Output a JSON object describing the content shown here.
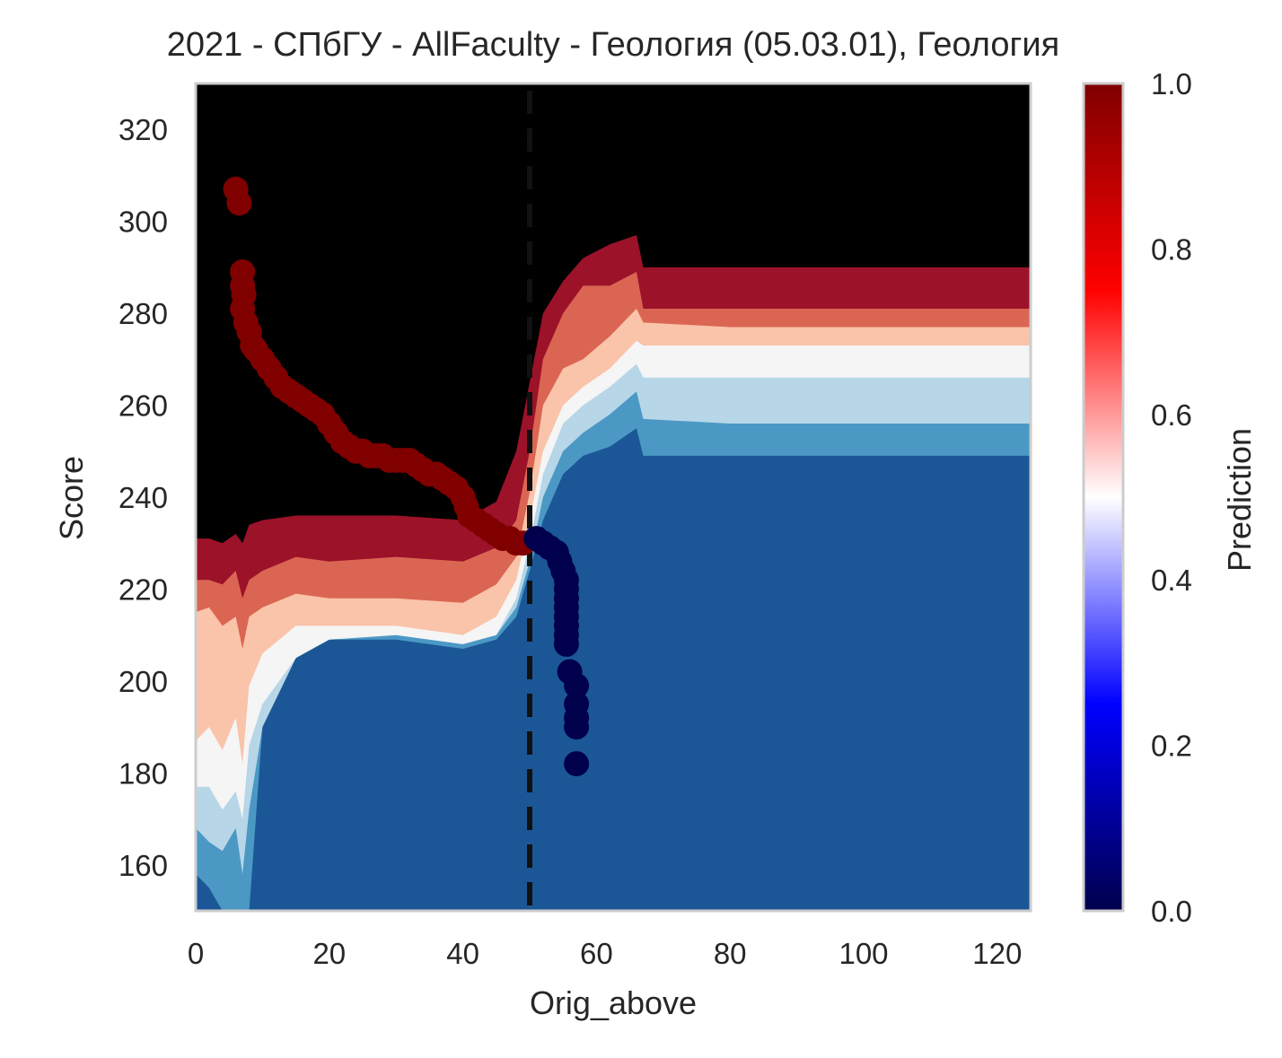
{
  "chart_data": {
    "type": "contour",
    "title": "2021 - СПбГУ - AllFaculty - Геология (05.03.01), Геология",
    "xlabel": "Orig_above",
    "ylabel": "Score",
    "xlim": [
      0,
      125
    ],
    "ylim": [
      150,
      330
    ],
    "xticks": [
      0,
      20,
      40,
      60,
      80,
      100,
      120
    ],
    "yticks": [
      160,
      180,
      200,
      220,
      240,
      260,
      280,
      300,
      320
    ],
    "grid": false,
    "vline": {
      "x": 50,
      "style": "dashed",
      "color": "#111111"
    },
    "colorbar": {
      "label": "Prediction",
      "range": [
        0,
        1
      ],
      "ticks": [
        "0.0",
        "0.2",
        "0.4",
        "0.6",
        "0.8",
        "1.0"
      ],
      "colormap": [
        "#00004c",
        "#0000ff",
        "#ffffff",
        "#ff0000",
        "#800000"
      ]
    },
    "contour_levels": [
      0.0,
      0.125,
      0.25,
      0.375,
      0.5,
      0.625,
      0.75,
      0.875,
      1.0
    ],
    "contour_colors": [
      "#053061",
      "#1b5796",
      "#4b98c5",
      "#b7d6e8",
      "#f5f5f5",
      "#f9c4a9",
      "#db6553",
      "#9c1229"
    ],
    "decision_boundaries": {
      "x": [
        0,
        2,
        4,
        6,
        7,
        8,
        10,
        15,
        20,
        30,
        40,
        45,
        48,
        50,
        52,
        55,
        58,
        62,
        66,
        67,
        80,
        100,
        125
      ],
      "b875": [
        231,
        231,
        230,
        232,
        230,
        234,
        235,
        236,
        236,
        236,
        235,
        239,
        250,
        265,
        280,
        287,
        292,
        295,
        297,
        290,
        290,
        290,
        290
      ],
      "b750": [
        222,
        222,
        221,
        224,
        218,
        222,
        224,
        227,
        226,
        227,
        226,
        229,
        235,
        250,
        270,
        280,
        286,
        286,
        289,
        281,
        281,
        281,
        281
      ],
      "b625": [
        215,
        216,
        212,
        214,
        207,
        214,
        216,
        219,
        218,
        218,
        217,
        221,
        227,
        241,
        260,
        268,
        270,
        275,
        281,
        278,
        277,
        277,
        277
      ],
      "b500": [
        187,
        190,
        185,
        192,
        182,
        199,
        206,
        212,
        212,
        212,
        210,
        214,
        222,
        235,
        250,
        260,
        264,
        268,
        274,
        273,
        273,
        273,
        273
      ],
      "b375": [
        177,
        177,
        172,
        176,
        170,
        186,
        195,
        205,
        209,
        210,
        208,
        210,
        218,
        230,
        245,
        256,
        260,
        264,
        269,
        266,
        266,
        266,
        266
      ],
      "b250": [
        168,
        165,
        163,
        168,
        158,
        172,
        190,
        205,
        210,
        211,
        209,
        210,
        216,
        226,
        240,
        250,
        254,
        258,
        263,
        257,
        256,
        256,
        256
      ],
      "b125": [
        158,
        155,
        150,
        150,
        150,
        150,
        190,
        207,
        209,
        209,
        207,
        209,
        214,
        224,
        235,
        245,
        249,
        251,
        255,
        249,
        249,
        249,
        249
      ]
    },
    "series": [
      {
        "color": "#800000",
        "x": [
          6,
          6.5,
          7,
          7,
          7.2,
          7,
          7.5,
          8,
          8.5,
          9,
          10,
          11,
          12,
          13,
          14,
          15,
          16,
          17,
          18,
          19,
          20,
          21,
          22,
          23,
          24,
          25,
          26,
          27,
          28,
          29,
          30,
          31,
          32,
          33,
          34,
          35,
          36,
          37,
          38,
          39,
          40,
          40.5,
          41,
          42,
          43,
          44,
          45,
          46,
          47,
          48,
          49
        ],
        "y": [
          307,
          304,
          289,
          286,
          284,
          281,
          278,
          276,
          273,
          272,
          270,
          268,
          266,
          264,
          263,
          262,
          261,
          260,
          259,
          258,
          256,
          254,
          252,
          251,
          250,
          250,
          249,
          249,
          249,
          248,
          248,
          248,
          248,
          247,
          246,
          245,
          245,
          244,
          243,
          242,
          240,
          238,
          236,
          235,
          234,
          233,
          232,
          231,
          231,
          230,
          230
        ]
      },
      {
        "color": "#00004c",
        "x": [
          51,
          52,
          53,
          54,
          54.5,
          55,
          55.5,
          55.5,
          55.5,
          55.5,
          55.5,
          55.5,
          55.5,
          55.5,
          56,
          57,
          57,
          57,
          57,
          57
        ],
        "y": [
          231,
          230,
          229,
          228,
          226,
          224,
          222,
          220,
          218,
          216,
          214,
          212,
          210,
          208,
          202,
          199,
          195,
          192,
          190,
          182
        ]
      }
    ]
  }
}
